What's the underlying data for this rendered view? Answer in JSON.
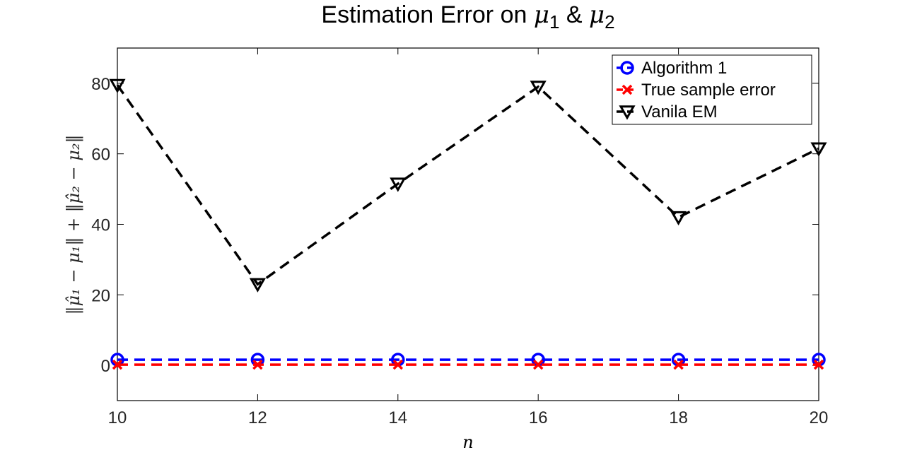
{
  "chart_data": {
    "type": "line",
    "title_text": "Estimation Error on ",
    "title_mu": "μ",
    "title_sub1": "1",
    "title_amp": " & ",
    "title_sub2": "2",
    "xlabel": "n",
    "ylabel": "‖μ̂₁ − μ₁‖ + ‖μ̂₂ − μ₂‖",
    "xlim": [
      10,
      20
    ],
    "ylim": [
      -10,
      90
    ],
    "xticks": [
      10,
      12,
      14,
      16,
      18,
      20
    ],
    "yticks": [
      0,
      20,
      40,
      60,
      80
    ],
    "x": [
      10,
      12,
      14,
      16,
      18,
      20
    ],
    "grid": false,
    "legend_position": "top-right",
    "series": [
      {
        "name": "Algorithm 1",
        "values": [
          1.6,
          1.6,
          1.6,
          1.6,
          1.6,
          1.6
        ],
        "color": "#0000ff",
        "marker": "circle",
        "line": "dashed"
      },
      {
        "name": "True sample error",
        "values": [
          0.2,
          0.2,
          0.2,
          0.2,
          0.2,
          0.2
        ],
        "color": "#ff0000",
        "marker": "x",
        "line": "dashed"
      },
      {
        "name": "Vanila EM",
        "values": [
          79.5,
          23,
          51.5,
          79,
          42,
          61.5
        ],
        "color": "#000000",
        "marker": "triangle-down",
        "line": "dashed"
      }
    ]
  }
}
